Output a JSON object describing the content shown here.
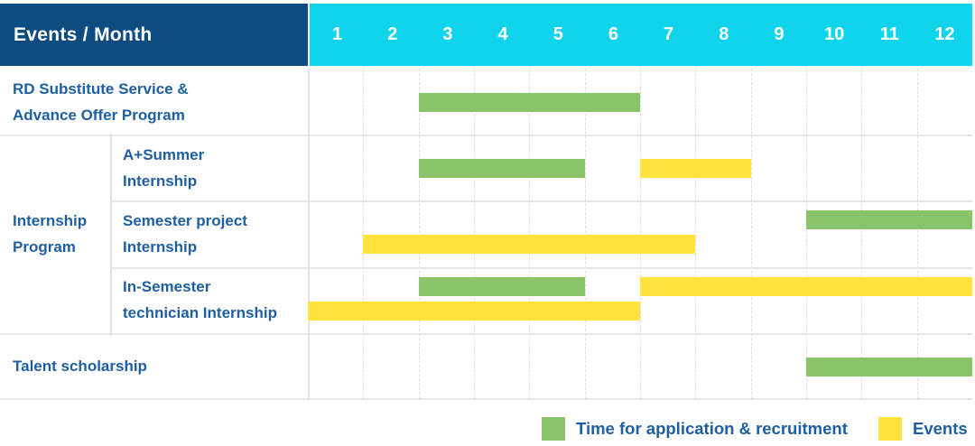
{
  "header": {
    "title": "Events / Month",
    "months": [
      "1",
      "2",
      "3",
      "4",
      "5",
      "6",
      "7",
      "8",
      "9",
      "10",
      "11",
      "12"
    ]
  },
  "group": {
    "label_lines": [
      "Internship",
      "Program"
    ]
  },
  "rows": [
    {
      "label_lines": [
        "RD Substitute Service &",
        "Advance Offer Program"
      ],
      "indent": false,
      "bars": [
        {
          "series": "Time for application & recruitment",
          "color": "green",
          "start_month": 3,
          "end_month": 6,
          "line": "center"
        }
      ]
    },
    {
      "label_lines": [
        "A+Summer",
        "Internship"
      ],
      "indent": true,
      "bars": [
        {
          "series": "Time for application & recruitment",
          "color": "green",
          "start_month": 3,
          "end_month": 5,
          "line": "center"
        },
        {
          "series": "Events",
          "color": "yellow",
          "start_month": 7,
          "end_month": 8,
          "line": "center"
        }
      ]
    },
    {
      "label_lines": [
        "Semester project",
        "Internship"
      ],
      "indent": true,
      "bars": [
        {
          "series": "Time for application & recruitment",
          "color": "green",
          "start_month": 10,
          "end_month": 12,
          "line": "top"
        },
        {
          "series": "Events",
          "color": "yellow",
          "start_month": 2,
          "end_month": 7,
          "line": "bottom"
        }
      ]
    },
    {
      "label_lines": [
        "In-Semester",
        "technician Internship"
      ],
      "indent": true,
      "bars": [
        {
          "series": "Time for application & recruitment",
          "color": "green",
          "start_month": 3,
          "end_month": 5,
          "line": "top"
        },
        {
          "series": "Events",
          "color": "yellow",
          "start_month": 7,
          "end_month": 12,
          "line": "top"
        },
        {
          "series": "Events",
          "color": "yellow",
          "start_month": 1,
          "end_month": 6,
          "line": "bottom"
        }
      ]
    },
    {
      "label_lines": [
        "Talent scholarship"
      ],
      "indent": false,
      "bars": [
        {
          "series": "Time for application & recruitment",
          "color": "green",
          "start_month": 10,
          "end_month": 12,
          "line": "center"
        }
      ]
    }
  ],
  "legend": {
    "items": [
      {
        "swatch": "green",
        "label": "Time for application & recruitment"
      },
      {
        "swatch": "yellow",
        "label": "Events"
      }
    ]
  },
  "colors": {
    "header_bg": "#0d4c80",
    "months_bg": "#0fd4ec",
    "green": "#8ac46a",
    "yellow": "#ffe33c",
    "label_text": "#1e5fa4"
  },
  "chart_data": {
    "type": "gantt",
    "title": "Events / Month",
    "x_axis": {
      "label": "Month",
      "ticks": [
        1,
        2,
        3,
        4,
        5,
        6,
        7,
        8,
        9,
        10,
        11,
        12
      ],
      "range": [
        1,
        12
      ]
    },
    "legend_entries": [
      "Time for application & recruitment",
      "Events"
    ],
    "legend_position": "bottom-right",
    "grid": true,
    "tasks": [
      {
        "row": "RD Substitute Service & Advance Offer Program",
        "group": null,
        "bars": [
          {
            "series": "Time for application & recruitment",
            "start_month": 3,
            "end_month": 6
          }
        ]
      },
      {
        "row": "A+Summer Internship",
        "group": "Internship Program",
        "bars": [
          {
            "series": "Time for application & recruitment",
            "start_month": 3,
            "end_month": 5
          },
          {
            "series": "Events",
            "start_month": 7,
            "end_month": 8
          }
        ]
      },
      {
        "row": "Semester project Internship",
        "group": "Internship Program",
        "bars": [
          {
            "series": "Time for application & recruitment",
            "start_month": 10,
            "end_month": 12
          },
          {
            "series": "Events",
            "start_month": 2,
            "end_month": 7
          }
        ]
      },
      {
        "row": "In-Semester technician Internship",
        "group": "Internship Program",
        "bars": [
          {
            "series": "Time for application & recruitment",
            "start_month": 3,
            "end_month": 5
          },
          {
            "series": "Events",
            "start_month": 1,
            "end_month": 6
          },
          {
            "series": "Events",
            "start_month": 7,
            "end_month": 12
          }
        ]
      },
      {
        "row": "Talent scholarship",
        "group": null,
        "bars": [
          {
            "series": "Time for application & recruitment",
            "start_month": 10,
            "end_month": 12
          }
        ]
      }
    ]
  }
}
